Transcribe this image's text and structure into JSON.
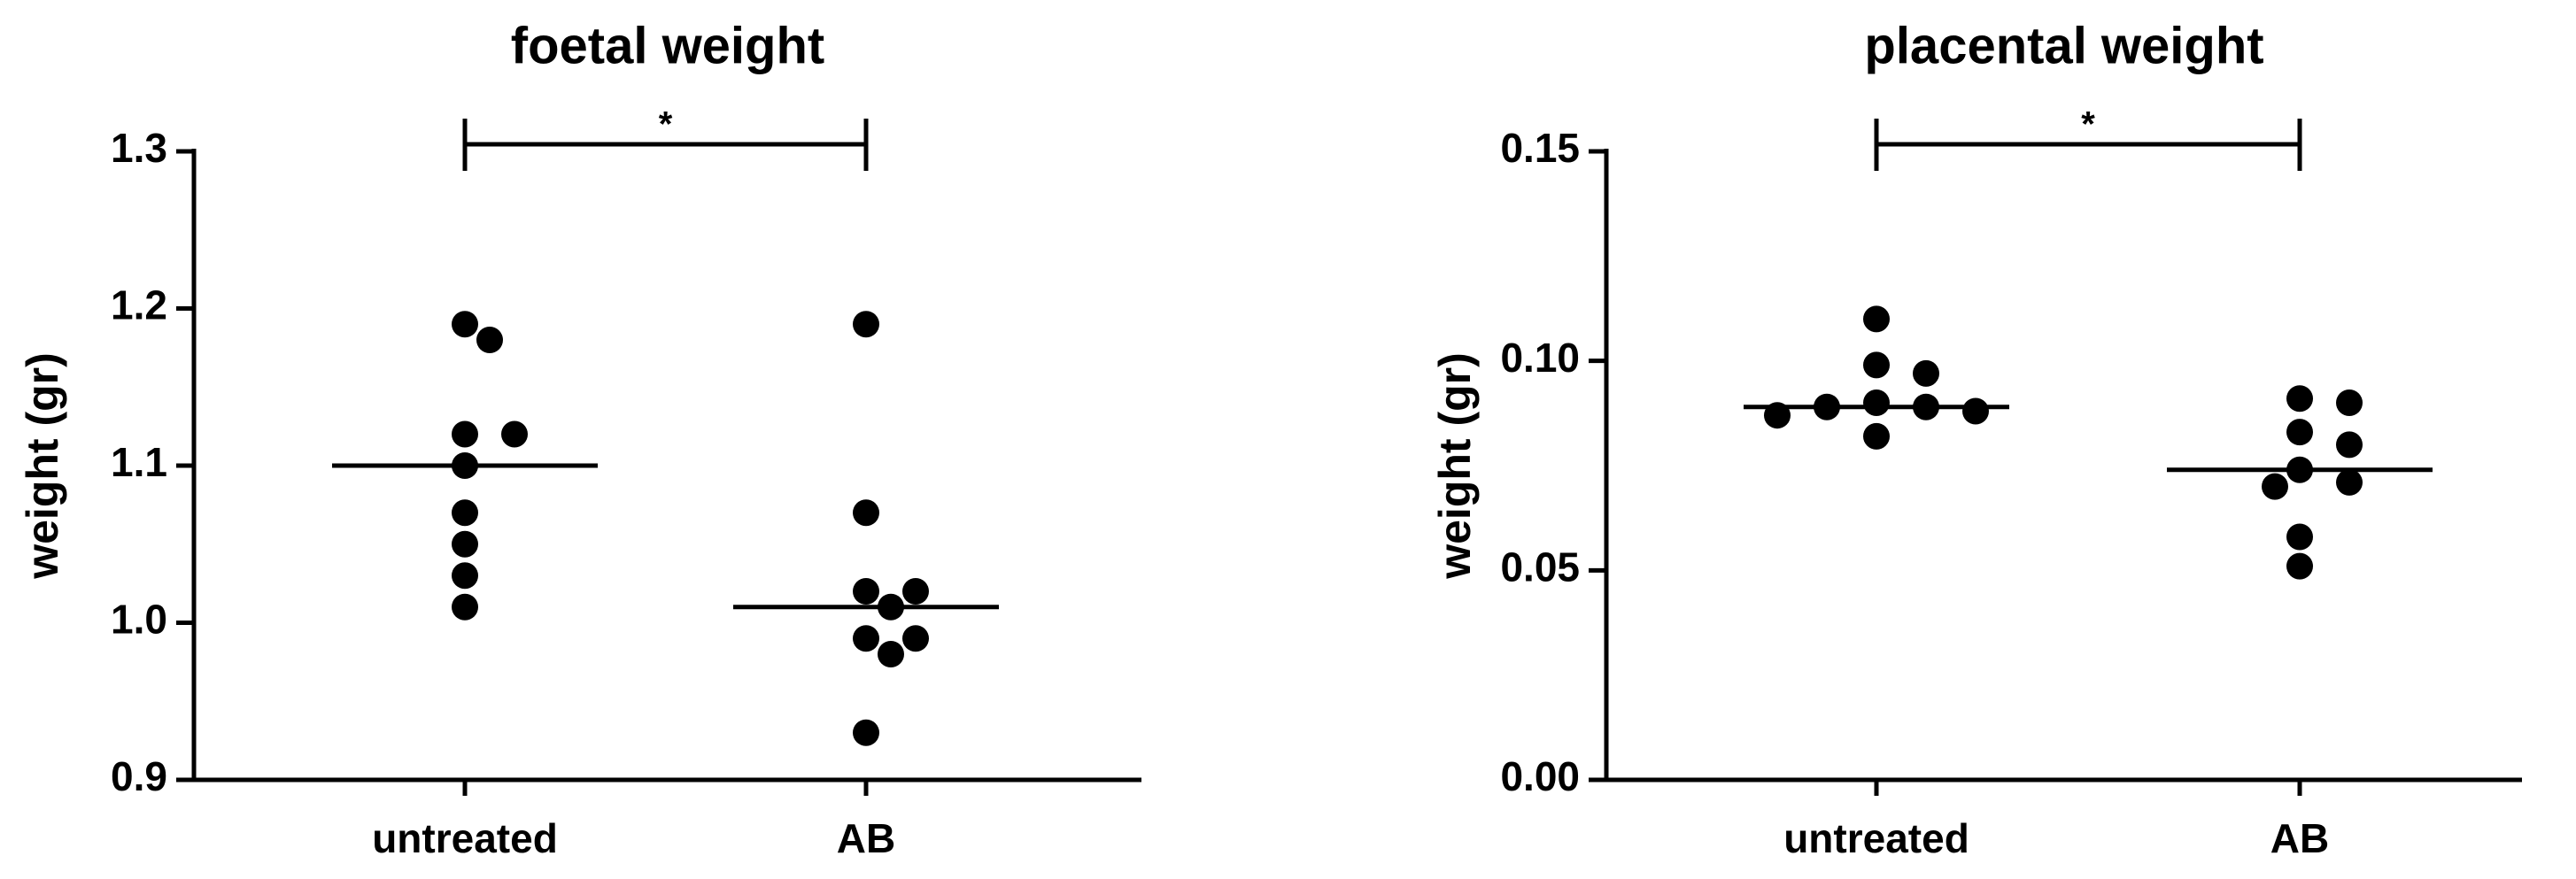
{
  "chart_data": [
    {
      "type": "dot",
      "title": "foetal weight",
      "y_label": "weight (gr)",
      "categories": [
        "untreated",
        "AB"
      ],
      "values": [
        [
          1.19,
          1.18,
          1.12,
          1.12,
          1.1,
          1.07,
          1.05,
          1.03,
          1.01
        ],
        [
          1.19,
          1.07,
          1.02,
          1.02,
          1.01,
          0.99,
          0.99,
          0.98,
          0.93
        ]
      ],
      "medians": [
        1.1,
        1.01
      ],
      "annotation": "*",
      "ylim": [
        0.9,
        1.3
      ],
      "yticks": [
        0.9,
        {
          "value": 1,
          "label": "1.0"
        },
        1.1,
        1.2,
        1.3
      ],
      "color": "#000000"
    },
    {
      "type": "dot",
      "title": "placental weight",
      "y_label": "weight (gr)",
      "categories": [
        "untreated",
        "AB"
      ],
      "values": [
        [
          0.11,
          0.099,
          0.097,
          0.09,
          0.089,
          0.089,
          0.088,
          0.087,
          0.082
        ],
        [
          0.091,
          0.09,
          0.083,
          0.08,
          0.074,
          0.071,
          0.07,
          0.058,
          0.051
        ]
      ],
      "medians": [
        0.089,
        0.074
      ],
      "annotation": "*",
      "ylim": [
        0,
        0.15
      ],
      "yticks": [
        {
          "value": 0,
          "label": "0.00"
        },
        {
          "value": 0.05,
          "label": "0.05"
        },
        {
          "value": 0.1,
          "label": "0.10"
        },
        {
          "value": 0.15,
          "label": "0.15"
        }
      ],
      "color": "#000000"
    }
  ]
}
